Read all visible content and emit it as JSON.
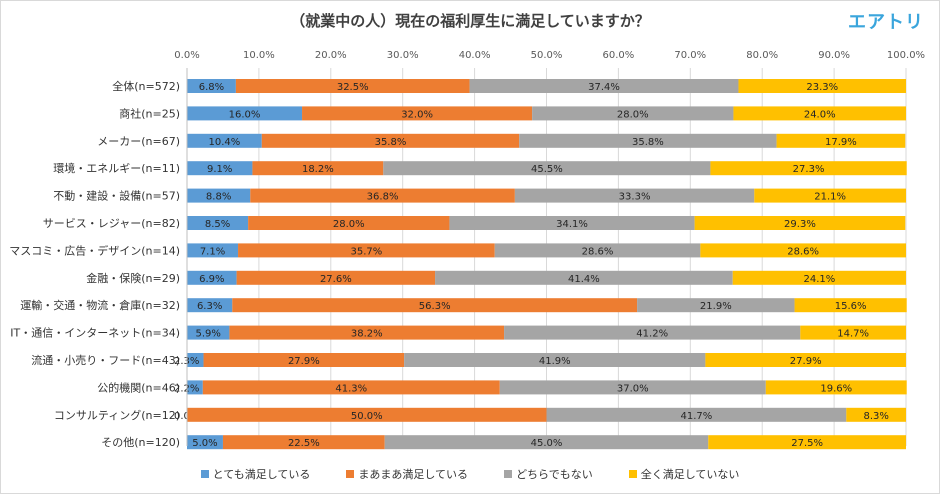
{
  "title": "（就業中の人）現在の福利厚生に満足していますか？",
  "logo": "エアトリ",
  "chart_data": {
    "type": "bar",
    "orientation": "horizontal",
    "stacked": true,
    "percent": true,
    "xlim": [
      0,
      100
    ],
    "ticks": [
      "0.0%",
      "10.0%",
      "20.0%",
      "30.0%",
      "40.0%",
      "50.0%",
      "60.0%",
      "70.0%",
      "80.0%",
      "90.0%",
      "100.0%"
    ],
    "legend_position": "bottom",
    "categories": [
      "全体(n=572)",
      "商社(n=25)",
      "メーカー(n=67)",
      "環境・エネルギー(n=11)",
      "不動・建設・設備(n=57)",
      "サービス・レジャー(n=82)",
      "マスコミ・広告・デザイン(n=14)",
      "金融・保険(n=29)",
      "運輸・交通・物流・倉庫(n=32)",
      "IT・通信・インターネット(n=34)",
      "流通・小売り・フード(n=43)",
      "公的機関(n=46)",
      "コンサルティング(n=12)",
      "その他(n=120)"
    ],
    "series": [
      {
        "name": "とても満足している",
        "color": "#5b9bd5",
        "values": [
          6.8,
          16.0,
          10.4,
          9.1,
          8.8,
          8.5,
          7.1,
          6.9,
          6.3,
          5.9,
          2.3,
          2.2,
          0.0,
          5.0
        ]
      },
      {
        "name": "まあまあ満足している",
        "color": "#ed7d31",
        "values": [
          32.5,
          32.0,
          35.8,
          18.2,
          36.8,
          28.0,
          35.7,
          27.6,
          56.3,
          38.2,
          27.9,
          41.3,
          50.0,
          22.5
        ]
      },
      {
        "name": "どちらでもない",
        "color": "#a5a5a5",
        "values": [
          37.4,
          28.0,
          35.8,
          45.5,
          33.3,
          34.1,
          28.6,
          41.4,
          21.9,
          41.2,
          41.9,
          37.0,
          41.7,
          45.0
        ]
      },
      {
        "name": "全く満足していない",
        "color": "#ffc000",
        "values": [
          23.3,
          24.0,
          17.9,
          27.3,
          21.1,
          29.3,
          28.6,
          24.1,
          15.6,
          14.7,
          27.9,
          19.6,
          8.3,
          27.5
        ]
      }
    ]
  }
}
